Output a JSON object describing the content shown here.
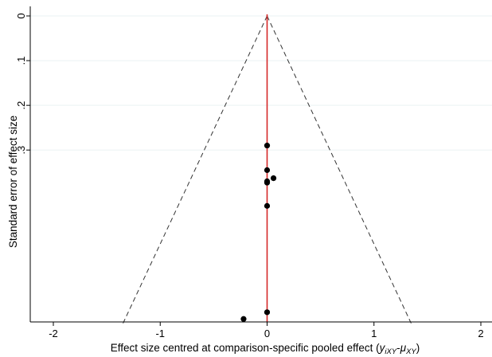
{
  "chart_data": {
    "type": "scatter",
    "subtype": "funnel plot",
    "xlabel": {
      "main": "Effect size centred at comparison-specific pooled effect (",
      "var1": "y",
      "sub1": "iXY",
      "dash": "-",
      "var2": "μ",
      "sub2": "XY",
      "close": ")"
    },
    "ylabel": "Standard error of effect size",
    "xlim": [
      -2,
      2
    ],
    "ylim": [
      0,
      0.69
    ],
    "y_reversed": true,
    "x_ticks": [
      -2,
      -1,
      0,
      1,
      2
    ],
    "x_tick_labels": [
      "-2",
      "-1",
      "0",
      "1",
      "2"
    ],
    "y_ticks": [
      0,
      0.1,
      0.2,
      0.3
    ],
    "y_tick_labels": [
      "0",
      ".1",
      ".2",
      ".3"
    ],
    "grid": "horizontal",
    "reference_line": {
      "x": 0,
      "color": "#d62728"
    },
    "funnel": {
      "apex": [
        0,
        0
      ],
      "base_se": 0.69,
      "multiplier": 1.96,
      "style": "dashed"
    },
    "points": [
      {
        "x": 0.0,
        "y": 0.29
      },
      {
        "x": 0.0,
        "y": 0.345
      },
      {
        "x": 0.0,
        "y": 0.37
      },
      {
        "x": 0.06,
        "y": 0.363
      },
      {
        "x": 0.0,
        "y": 0.373
      },
      {
        "x": 0.0,
        "y": 0.425
      },
      {
        "x": 0.0,
        "y": 0.663
      },
      {
        "x": -0.22,
        "y": 0.678
      }
    ],
    "colors": {
      "points": "#000000",
      "funnel": "#333333",
      "grid": "#eaf2f3",
      "axis": "#000000"
    }
  }
}
